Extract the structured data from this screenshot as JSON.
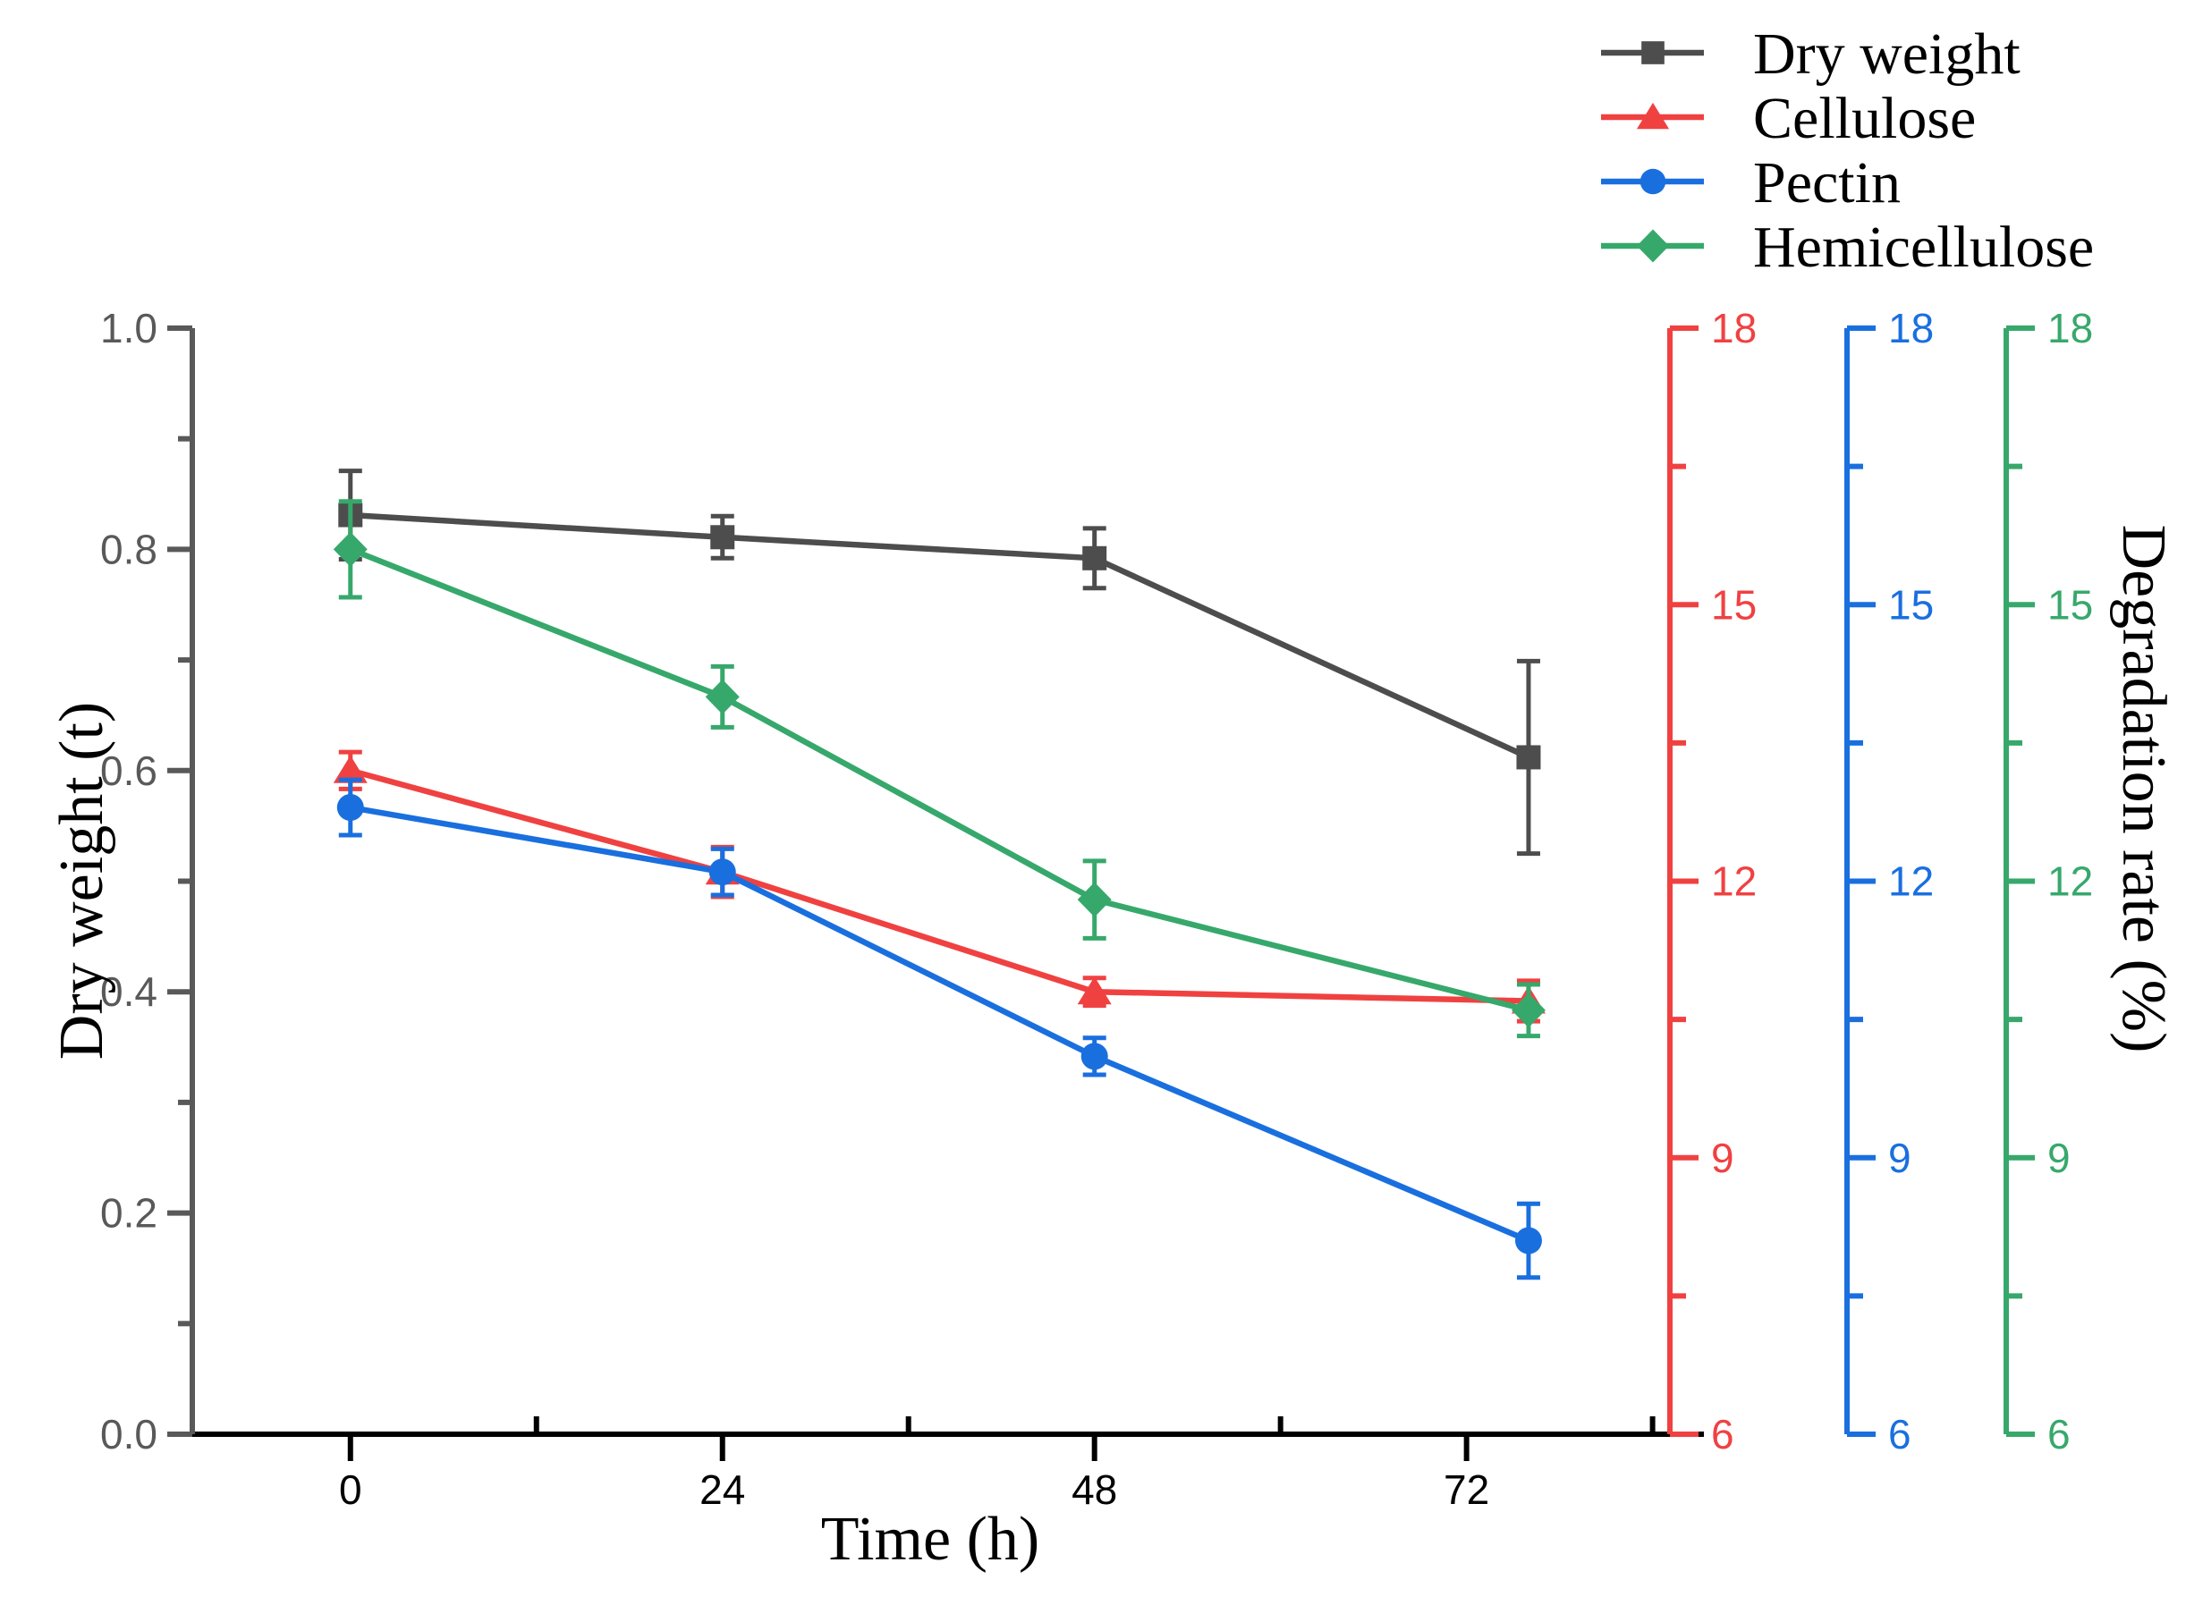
{
  "figure": {
    "background": "#ffffff"
  },
  "chart_data": {
    "type": "line",
    "title": "",
    "xlabel": "Time (h)",
    "x": [
      0,
      24,
      48,
      76
    ],
    "xlim": [
      -10.2,
      87.6
    ],
    "x_major_ticks": [
      0,
      24,
      48,
      72
    ],
    "x_minor_ticks": [
      12,
      36,
      60,
      84
    ],
    "x_axis_color": "#000000",
    "grid": false,
    "legend_position": "top-right",
    "left_axis": {
      "label": "Dry weight (t)",
      "lim": [
        0.0,
        1.0
      ],
      "major_ticks": [
        0.0,
        0.2,
        0.4,
        0.6,
        0.8,
        1.0
      ],
      "minor_ticks": [
        0.1,
        0.3,
        0.5,
        0.7,
        0.9
      ],
      "axis_color": "#595959",
      "tick_label_color": "#595959",
      "decimals": 1
    },
    "right_axis_label": "Degradation rate (%)",
    "right_axes": [
      {
        "series": "Cellulose",
        "color": "#f04141",
        "lim": [
          6,
          18
        ],
        "major_ticks": [
          6,
          9,
          12,
          15,
          18
        ],
        "minor_ticks": [
          7.5,
          10.5,
          13.5,
          16.5
        ]
      },
      {
        "series": "Pectin",
        "color": "#1a6fdf",
        "lim": [
          6,
          18
        ],
        "major_ticks": [
          6,
          9,
          12,
          15,
          18
        ],
        "minor_ticks": [
          7.5,
          10.5,
          13.5,
          16.5
        ]
      },
      {
        "series": "Hemicellulose",
        "color": "#37a86b",
        "lim": [
          6,
          18
        ],
        "major_ticks": [
          6,
          9,
          12,
          15,
          18
        ],
        "minor_ticks": [
          7.5,
          10.5,
          13.5,
          16.5
        ]
      }
    ],
    "series": [
      {
        "name": "Dry weight",
        "axis": "left",
        "color": "#4d4d4d",
        "marker": "square",
        "values": [
          0.831,
          0.811,
          0.792,
          0.612
        ],
        "errors": [
          0.04,
          0.019,
          0.027,
          0.087
        ]
      },
      {
        "name": "Cellulose",
        "axis": "right-0",
        "color": "#f04141",
        "marker": "triangle",
        "values": [
          13.2,
          12.1,
          10.8,
          10.7
        ],
        "errors": [
          0.2,
          0.27,
          0.15,
          0.22
        ]
      },
      {
        "name": "Pectin",
        "axis": "right-1",
        "color": "#1a6fdf",
        "marker": "circle",
        "values": [
          12.8,
          12.1,
          10.1,
          8.1
        ],
        "errors": [
          0.3,
          0.25,
          0.2,
          0.4
        ]
      },
      {
        "name": "Hemicellulose",
        "axis": "right-2",
        "color": "#37a86b",
        "marker": "diamond",
        "values": [
          15.6,
          14.0,
          11.8,
          10.6
        ],
        "errors": [
          0.52,
          0.33,
          0.42,
          0.28
        ]
      }
    ],
    "legend": [
      "Dry weight",
      "Cellulose",
      "Pectin",
      "Hemicellulose"
    ]
  }
}
